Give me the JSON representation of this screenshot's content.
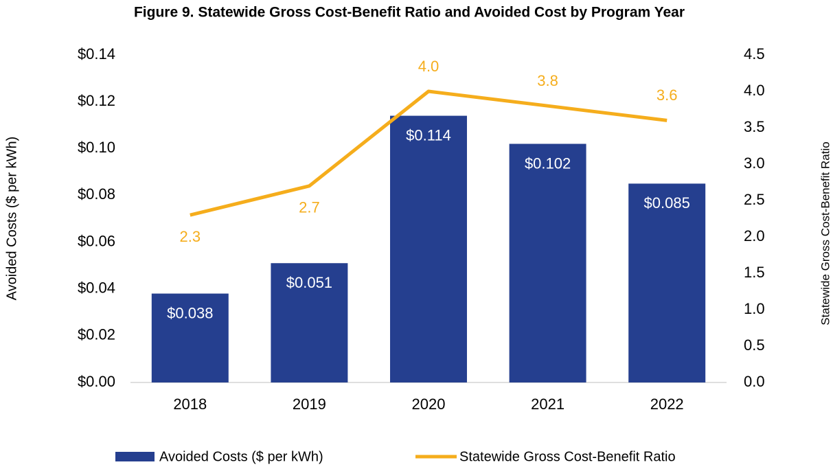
{
  "chart_data": {
    "type": "bar",
    "title": "Figure 9. Statewide Gross Cost-Benefit Ratio and Avoided Cost by Program Year",
    "categories": [
      "2018",
      "2019",
      "2020",
      "2021",
      "2022"
    ],
    "series": [
      {
        "name": "Avoided Costs ($ per kWh)",
        "type": "bar",
        "color": "#253f8f",
        "values": [
          0.038,
          0.051,
          0.114,
          0.102,
          0.085
        ],
        "value_labels": [
          "$0.038",
          "$0.051",
          "$0.114",
          "$0.102",
          "$0.085"
        ]
      },
      {
        "name": "Statewide Gross Cost-Benefit Ratio",
        "type": "line",
        "axis": "y2",
        "color": "#f5ad1c",
        "values": [
          2.3,
          2.7,
          4.0,
          3.8,
          3.6
        ],
        "value_labels": [
          "2.3",
          "2.7",
          "4.0",
          "3.8",
          "3.6"
        ]
      }
    ],
    "ylabel": "Avoided Costs ($ per kWh)",
    "y2label": "Statewide  Gross Cost-Benefit Ratio",
    "ylim": [
      0,
      0.14
    ],
    "yticks": [
      {
        "value": 0,
        "label": "$0.00"
      },
      {
        "value": 0.02,
        "label": "$0.02"
      },
      {
        "value": 0.04,
        "label": "$0.04"
      },
      {
        "value": 0.06,
        "label": "$0.06"
      },
      {
        "value": 0.08,
        "label": "$0.08"
      },
      {
        "value": 0.1,
        "label": "$0.10"
      },
      {
        "value": 0.12,
        "label": "$0.12"
      },
      {
        "value": 0.14,
        "label": "$0.14"
      }
    ],
    "y2lim": [
      0,
      4.5
    ],
    "y2ticks": [
      {
        "value": 0,
        "label": "0.0"
      },
      0.5,
      {
        "value": 1,
        "label": "1.0"
      },
      1.5,
      {
        "value": 2,
        "label": "2.0"
      },
      2.5,
      {
        "value": 3,
        "label": "3.0"
      },
      3.5,
      {
        "value": 4,
        "label": "4.0"
      },
      4.5
    ],
    "grid": false,
    "legend": "bottom"
  }
}
